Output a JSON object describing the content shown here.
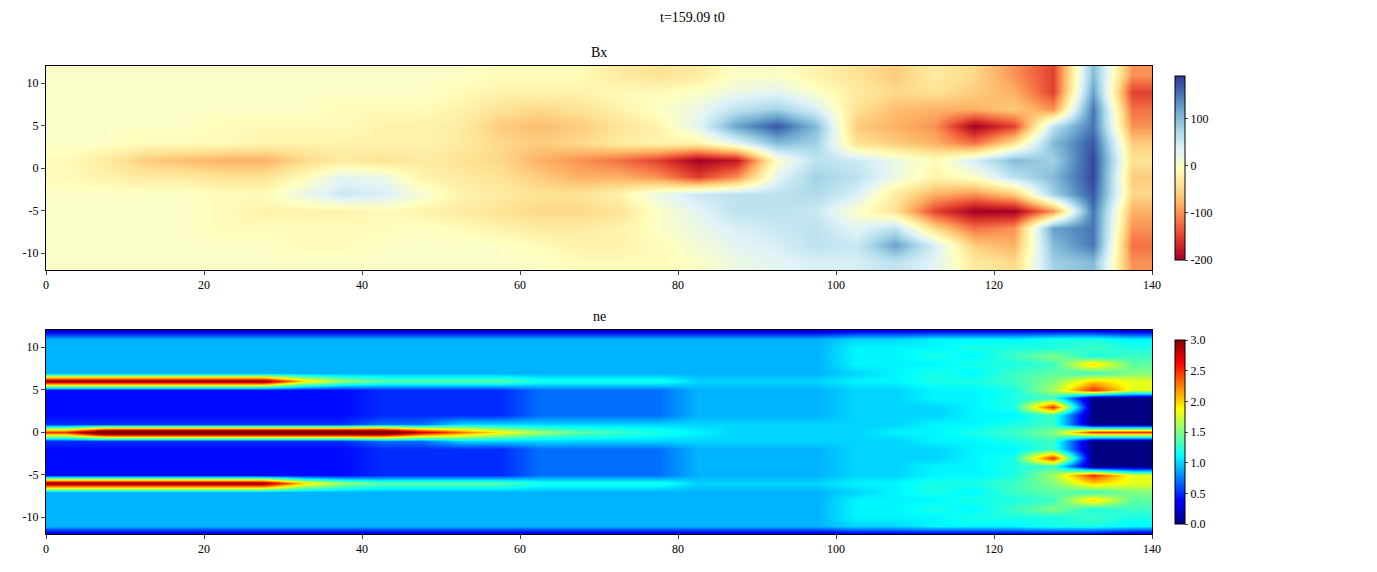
{
  "title": "t=159.09 t0",
  "chart_data": [
    {
      "type": "heatmap",
      "title": "Bx",
      "color": "RdYlBu",
      "x": [
        2.5,
        7.5,
        12.5,
        17.5,
        22.5,
        27.5,
        32.5,
        37.5,
        42.5,
        47.5,
        52.5,
        57.5,
        62.5,
        67.5,
        72.5,
        77.5,
        82.5,
        87.5,
        92.5,
        97.5,
        102.5,
        107.5,
        112.5,
        117.5,
        122.5,
        127.5,
        132.5,
        137.5
      ],
      "y": [
        -11,
        -9,
        -7,
        -5,
        -3,
        -1,
        1,
        3,
        5,
        7,
        9,
        11
      ],
      "z": [
        [
          0,
          0,
          0,
          0,
          0,
          0,
          0,
          0,
          0,
          0,
          0,
          0,
          0,
          -10,
          -10,
          -10,
          0,
          20,
          30,
          40,
          40,
          60,
          30,
          -30,
          -50,
          80,
          100,
          -100
        ],
        [
          0,
          0,
          0,
          0,
          0,
          0,
          -10,
          -10,
          0,
          0,
          0,
          0,
          -10,
          -20,
          -20,
          -10,
          10,
          30,
          40,
          60,
          50,
          120,
          40,
          -60,
          -80,
          100,
          150,
          -120
        ],
        [
          0,
          0,
          0,
          0,
          -10,
          -10,
          -10,
          -10,
          -10,
          0,
          -10,
          -20,
          -30,
          -30,
          -20,
          0,
          20,
          40,
          50,
          60,
          30,
          60,
          -50,
          -120,
          -100,
          120,
          150,
          -100
        ],
        [
          0,
          0,
          0,
          0,
          -10,
          -20,
          -20,
          -20,
          -10,
          -20,
          -30,
          -40,
          -50,
          -50,
          -40,
          0,
          30,
          60,
          60,
          50,
          0,
          -40,
          -150,
          -200,
          -200,
          -100,
          150,
          -80
        ],
        [
          0,
          0,
          0,
          0,
          -10,
          -10,
          20,
          50,
          40,
          10,
          -20,
          -30,
          -40,
          -40,
          -20,
          20,
          50,
          60,
          60,
          70,
          40,
          -30,
          -80,
          -100,
          -60,
          80,
          170,
          -50
        ],
        [
          -10,
          -20,
          -30,
          -30,
          -40,
          -40,
          -10,
          30,
          20,
          -20,
          -30,
          -40,
          -60,
          -80,
          -80,
          -100,
          -150,
          -100,
          30,
          80,
          60,
          20,
          -20,
          0,
          60,
          100,
          180,
          -60
        ],
        [
          -10,
          -30,
          -60,
          -70,
          -80,
          -80,
          -50,
          -30,
          -40,
          -30,
          -40,
          -50,
          -80,
          -100,
          -120,
          -150,
          -200,
          -180,
          0,
          60,
          50,
          20,
          -10,
          40,
          100,
          80,
          180,
          -40
        ],
        [
          0,
          0,
          -10,
          -10,
          -10,
          -20,
          -20,
          -20,
          -20,
          -20,
          -30,
          -50,
          -60,
          -50,
          -30,
          -20,
          -20,
          30,
          100,
          80,
          -40,
          -60,
          -80,
          -120,
          -40,
          100,
          170,
          -60
        ],
        [
          0,
          0,
          0,
          0,
          -10,
          -10,
          -10,
          -10,
          -20,
          -20,
          -30,
          -60,
          -70,
          -60,
          -40,
          -20,
          30,
          120,
          170,
          100,
          -60,
          -80,
          -100,
          -200,
          -150,
          60,
          150,
          -100
        ],
        [
          0,
          0,
          0,
          0,
          0,
          0,
          0,
          -10,
          -10,
          -10,
          -20,
          -40,
          -50,
          -40,
          -20,
          0,
          20,
          60,
          80,
          40,
          -40,
          -70,
          -80,
          -80,
          -60,
          -100,
          150,
          -120
        ],
        [
          0,
          0,
          0,
          0,
          0,
          0,
          0,
          0,
          0,
          0,
          -10,
          -20,
          -20,
          -20,
          -10,
          -10,
          0,
          20,
          30,
          0,
          -30,
          -50,
          -40,
          -60,
          -80,
          -150,
          120,
          -150
        ],
        [
          0,
          0,
          0,
          0,
          0,
          0,
          0,
          0,
          0,
          0,
          0,
          -10,
          -10,
          -10,
          -30,
          -40,
          -30,
          0,
          0,
          -20,
          -40,
          -60,
          -30,
          -50,
          -100,
          -150,
          100,
          -100
        ]
      ],
      "xlim": [
        0,
        140
      ],
      "ylim": [
        -12,
        12
      ],
      "xticks": [
        0,
        20,
        40,
        60,
        80,
        100,
        120,
        140
      ],
      "yticks": [
        -10,
        -5,
        0,
        5,
        10
      ],
      "zlim": [
        -200,
        190
      ],
      "zticks": [
        -200,
        -100,
        0,
        100
      ]
    },
    {
      "type": "heatmap",
      "title": "ne",
      "color": "jet",
      "x": [
        2.5,
        7.5,
        12.5,
        17.5,
        22.5,
        27.5,
        32.5,
        37.5,
        42.5,
        47.5,
        52.5,
        57.5,
        62.5,
        67.5,
        72.5,
        77.5,
        82.5,
        87.5,
        92.5,
        97.5,
        102.5,
        107.5,
        112.5,
        117.5,
        122.5,
        127.5,
        132.5,
        137.5
      ],
      "y": [
        -12,
        -11,
        -10,
        -9,
        -8,
        -7,
        -6,
        -5,
        -4,
        -3,
        -2,
        -1,
        0,
        1,
        2,
        3,
        4,
        5,
        6,
        7,
        8,
        9,
        10,
        11,
        12
      ],
      "z": [
        [
          0.2,
          0.2,
          0.2,
          0.2,
          0.2,
          0.2,
          0.2,
          0.2,
          0.2,
          0.2,
          0.2,
          0.2,
          0.2,
          0.2,
          0.2,
          0.2,
          0.2,
          0.2,
          0.2,
          0.2,
          0.3,
          0.3,
          0.3,
          0.3,
          0.3,
          0.3,
          0.3,
          0.2
        ],
        [
          0.9,
          0.9,
          0.9,
          0.9,
          0.9,
          0.9,
          0.9,
          0.9,
          0.9,
          0.9,
          0.9,
          0.9,
          0.9,
          0.9,
          0.9,
          0.9,
          0.9,
          0.9,
          0.9,
          0.9,
          1.0,
          1.0,
          1.1,
          1.1,
          1.1,
          1.2,
          1.2,
          1.1
        ],
        [
          0.9,
          0.9,
          0.9,
          0.9,
          0.9,
          0.9,
          0.9,
          0.9,
          0.9,
          0.9,
          0.9,
          0.9,
          0.9,
          0.9,
          0.9,
          0.9,
          0.9,
          0.9,
          0.9,
          0.9,
          1.1,
          1.1,
          1.1,
          1.2,
          1.2,
          1.2,
          1.3,
          1.2
        ],
        [
          0.9,
          0.9,
          0.9,
          0.9,
          0.9,
          0.9,
          0.9,
          0.9,
          0.9,
          0.9,
          0.9,
          0.9,
          0.9,
          0.9,
          0.9,
          0.9,
          0.9,
          0.9,
          0.9,
          0.9,
          1.1,
          1.1,
          1.2,
          1.1,
          1.3,
          1.5,
          1.2,
          1.3
        ],
        [
          0.9,
          0.9,
          0.9,
          0.9,
          0.9,
          0.9,
          0.9,
          0.9,
          0.9,
          0.9,
          0.9,
          0.9,
          0.9,
          0.9,
          0.9,
          0.9,
          0.9,
          0.9,
          0.9,
          0.9,
          1.1,
          1.1,
          1.1,
          1.2,
          1.2,
          1.3,
          2.0,
          1.4
        ],
        [
          0.9,
          0.9,
          0.9,
          0.9,
          0.9,
          0.9,
          0.9,
          0.9,
          0.9,
          0.9,
          0.9,
          0.9,
          0.9,
          0.9,
          0.9,
          0.9,
          0.9,
          0.9,
          0.9,
          0.9,
          1.0,
          1.1,
          1.2,
          1.1,
          1.3,
          1.4,
          1.3,
          1.5
        ],
        [
          3.0,
          3.0,
          3.0,
          3.0,
          3.0,
          3.0,
          2.0,
          1.6,
          1.4,
          1.4,
          1.4,
          1.4,
          1.2,
          1.2,
          1.2,
          1.2,
          1.0,
          1.0,
          1.0,
          1.0,
          1.1,
          1.1,
          1.2,
          1.2,
          1.3,
          1.5,
          2.0,
          1.8
        ],
        [
          0.4,
          0.4,
          0.4,
          0.4,
          0.4,
          0.4,
          0.4,
          0.4,
          0.5,
          0.5,
          0.5,
          0.5,
          0.7,
          0.7,
          0.7,
          0.7,
          0.9,
          0.9,
          0.9,
          0.9,
          1.0,
          1.0,
          1.1,
          1.1,
          1.2,
          1.6,
          2.5,
          1.8
        ],
        [
          0.4,
          0.4,
          0.4,
          0.4,
          0.4,
          0.4,
          0.4,
          0.4,
          0.5,
          0.5,
          0.5,
          0.5,
          0.7,
          0.7,
          0.7,
          0.7,
          0.9,
          0.9,
          0.9,
          0.9,
          1.0,
          1.0,
          1.1,
          1.1,
          1.2,
          1.3,
          0.0,
          0.0
        ],
        [
          0.4,
          0.4,
          0.4,
          0.4,
          0.4,
          0.4,
          0.4,
          0.4,
          0.5,
          0.5,
          0.5,
          0.5,
          0.7,
          0.7,
          0.7,
          0.7,
          0.9,
          0.9,
          0.9,
          0.9,
          1.0,
          1.0,
          1.0,
          1.1,
          1.2,
          2.5,
          0.0,
          0.0
        ],
        [
          0.4,
          0.4,
          0.4,
          0.4,
          0.4,
          0.4,
          0.4,
          0.4,
          0.5,
          0.5,
          0.5,
          0.5,
          0.7,
          0.7,
          0.7,
          0.7,
          0.9,
          0.9,
          0.9,
          0.9,
          1.0,
          1.0,
          1.0,
          1.1,
          1.1,
          1.3,
          0.0,
          0.0
        ],
        [
          0.5,
          0.5,
          0.5,
          0.5,
          0.5,
          0.5,
          0.5,
          0.5,
          0.7,
          0.7,
          1.0,
          1.0,
          1.0,
          1.0,
          1.0,
          1.0,
          1.0,
          1.0,
          1.0,
          1.0,
          1.0,
          1.0,
          1.1,
          1.1,
          1.2,
          1.3,
          0.0,
          0.0
        ],
        [
          2.5,
          3.5,
          3.5,
          3.5,
          3.5,
          3.5,
          3.5,
          3.5,
          3.5,
          2.8,
          2.3,
          1.9,
          1.6,
          1.4,
          1.3,
          1.2,
          1.1,
          1.0,
          1.0,
          1.0,
          1.0,
          1.1,
          1.1,
          1.2,
          1.3,
          1.5,
          2.5,
          2.5
        ],
        [
          0.5,
          0.5,
          0.5,
          0.5,
          0.5,
          0.5,
          0.5,
          0.5,
          0.7,
          0.7,
          1.0,
          1.0,
          1.0,
          1.0,
          1.0,
          1.0,
          1.0,
          1.0,
          1.0,
          1.0,
          1.0,
          1.0,
          1.1,
          1.1,
          1.2,
          1.3,
          0.0,
          0.0
        ],
        [
          0.4,
          0.4,
          0.4,
          0.4,
          0.4,
          0.4,
          0.4,
          0.4,
          0.5,
          0.5,
          0.5,
          0.5,
          0.7,
          0.7,
          0.7,
          0.7,
          0.9,
          0.9,
          0.9,
          0.9,
          1.0,
          1.0,
          1.0,
          1.1,
          1.1,
          1.3,
          0.0,
          0.0
        ],
        [
          0.4,
          0.4,
          0.4,
          0.4,
          0.4,
          0.4,
          0.4,
          0.4,
          0.5,
          0.5,
          0.5,
          0.5,
          0.7,
          0.7,
          0.7,
          0.7,
          0.9,
          0.9,
          0.9,
          0.9,
          1.0,
          1.0,
          1.0,
          1.1,
          1.2,
          2.5,
          0.0,
          0.0
        ],
        [
          0.4,
          0.4,
          0.4,
          0.4,
          0.4,
          0.4,
          0.4,
          0.4,
          0.5,
          0.5,
          0.5,
          0.5,
          0.7,
          0.7,
          0.7,
          0.7,
          0.9,
          0.9,
          0.9,
          0.9,
          1.0,
          1.0,
          1.1,
          1.1,
          1.2,
          1.3,
          0.0,
          0.0
        ],
        [
          0.4,
          0.4,
          0.4,
          0.4,
          0.4,
          0.4,
          0.4,
          0.4,
          0.5,
          0.5,
          0.5,
          0.5,
          0.7,
          0.7,
          0.7,
          0.7,
          0.9,
          0.9,
          0.9,
          0.9,
          1.0,
          1.0,
          1.1,
          1.1,
          1.2,
          1.6,
          2.5,
          1.8
        ],
        [
          3.0,
          3.0,
          3.0,
          3.0,
          3.0,
          3.0,
          2.0,
          1.6,
          1.4,
          1.4,
          1.4,
          1.4,
          1.2,
          1.2,
          1.2,
          1.2,
          1.0,
          1.0,
          1.0,
          1.0,
          1.1,
          1.1,
          1.2,
          1.2,
          1.3,
          1.5,
          2.0,
          1.8
        ],
        [
          0.9,
          0.9,
          0.9,
          0.9,
          0.9,
          0.9,
          0.9,
          0.9,
          0.9,
          0.9,
          0.9,
          0.9,
          0.9,
          0.9,
          0.9,
          0.9,
          0.9,
          0.9,
          0.9,
          0.9,
          1.0,
          1.1,
          1.2,
          1.1,
          1.3,
          1.4,
          1.3,
          1.5
        ],
        [
          0.9,
          0.9,
          0.9,
          0.9,
          0.9,
          0.9,
          0.9,
          0.9,
          0.9,
          0.9,
          0.9,
          0.9,
          0.9,
          0.9,
          0.9,
          0.9,
          0.9,
          0.9,
          0.9,
          0.9,
          1.1,
          1.1,
          1.1,
          1.2,
          1.2,
          1.3,
          2.0,
          1.4
        ],
        [
          0.9,
          0.9,
          0.9,
          0.9,
          0.9,
          0.9,
          0.9,
          0.9,
          0.9,
          0.9,
          0.9,
          0.9,
          0.9,
          0.9,
          0.9,
          0.9,
          0.9,
          0.9,
          0.9,
          0.9,
          1.1,
          1.1,
          1.2,
          1.1,
          1.3,
          1.5,
          1.2,
          1.3
        ],
        [
          0.9,
          0.9,
          0.9,
          0.9,
          0.9,
          0.9,
          0.9,
          0.9,
          0.9,
          0.9,
          0.9,
          0.9,
          0.9,
          0.9,
          0.9,
          0.9,
          0.9,
          0.9,
          0.9,
          0.9,
          1.1,
          1.1,
          1.1,
          1.2,
          1.2,
          1.2,
          1.3,
          1.2
        ],
        [
          0.9,
          0.9,
          0.9,
          0.9,
          0.9,
          0.9,
          0.9,
          0.9,
          0.9,
          0.9,
          0.9,
          0.9,
          0.9,
          0.9,
          0.9,
          0.9,
          0.9,
          0.9,
          0.9,
          0.9,
          1.0,
          1.0,
          1.1,
          1.1,
          1.1,
          1.2,
          1.2,
          1.1
        ],
        [
          0.2,
          0.2,
          0.2,
          0.2,
          0.2,
          0.2,
          0.2,
          0.2,
          0.2,
          0.2,
          0.2,
          0.2,
          0.2,
          0.2,
          0.2,
          0.2,
          0.2,
          0.2,
          0.2,
          0.2,
          0.3,
          0.3,
          0.3,
          0.3,
          0.3,
          0.3,
          0.3,
          0.2
        ]
      ],
      "xlim": [
        0,
        140
      ],
      "ylim": [
        -12,
        12
      ],
      "xticks": [
        0,
        20,
        40,
        60,
        80,
        100,
        120,
        140
      ],
      "yticks": [
        -10,
        -5,
        0,
        5,
        10
      ],
      "zlim": [
        0,
        3
      ],
      "zticks": [
        {
          "value": 0,
          "label": "0.0"
        },
        {
          "value": 0.5,
          "label": "0.5"
        },
        {
          "value": 1,
          "label": "1.0"
        },
        {
          "value": 1.5,
          "label": "1.5"
        },
        {
          "value": 2,
          "label": "2.0"
        },
        {
          "value": 2.5,
          "label": "2.5"
        },
        {
          "value": 3,
          "label": "3.0"
        }
      ]
    }
  ]
}
